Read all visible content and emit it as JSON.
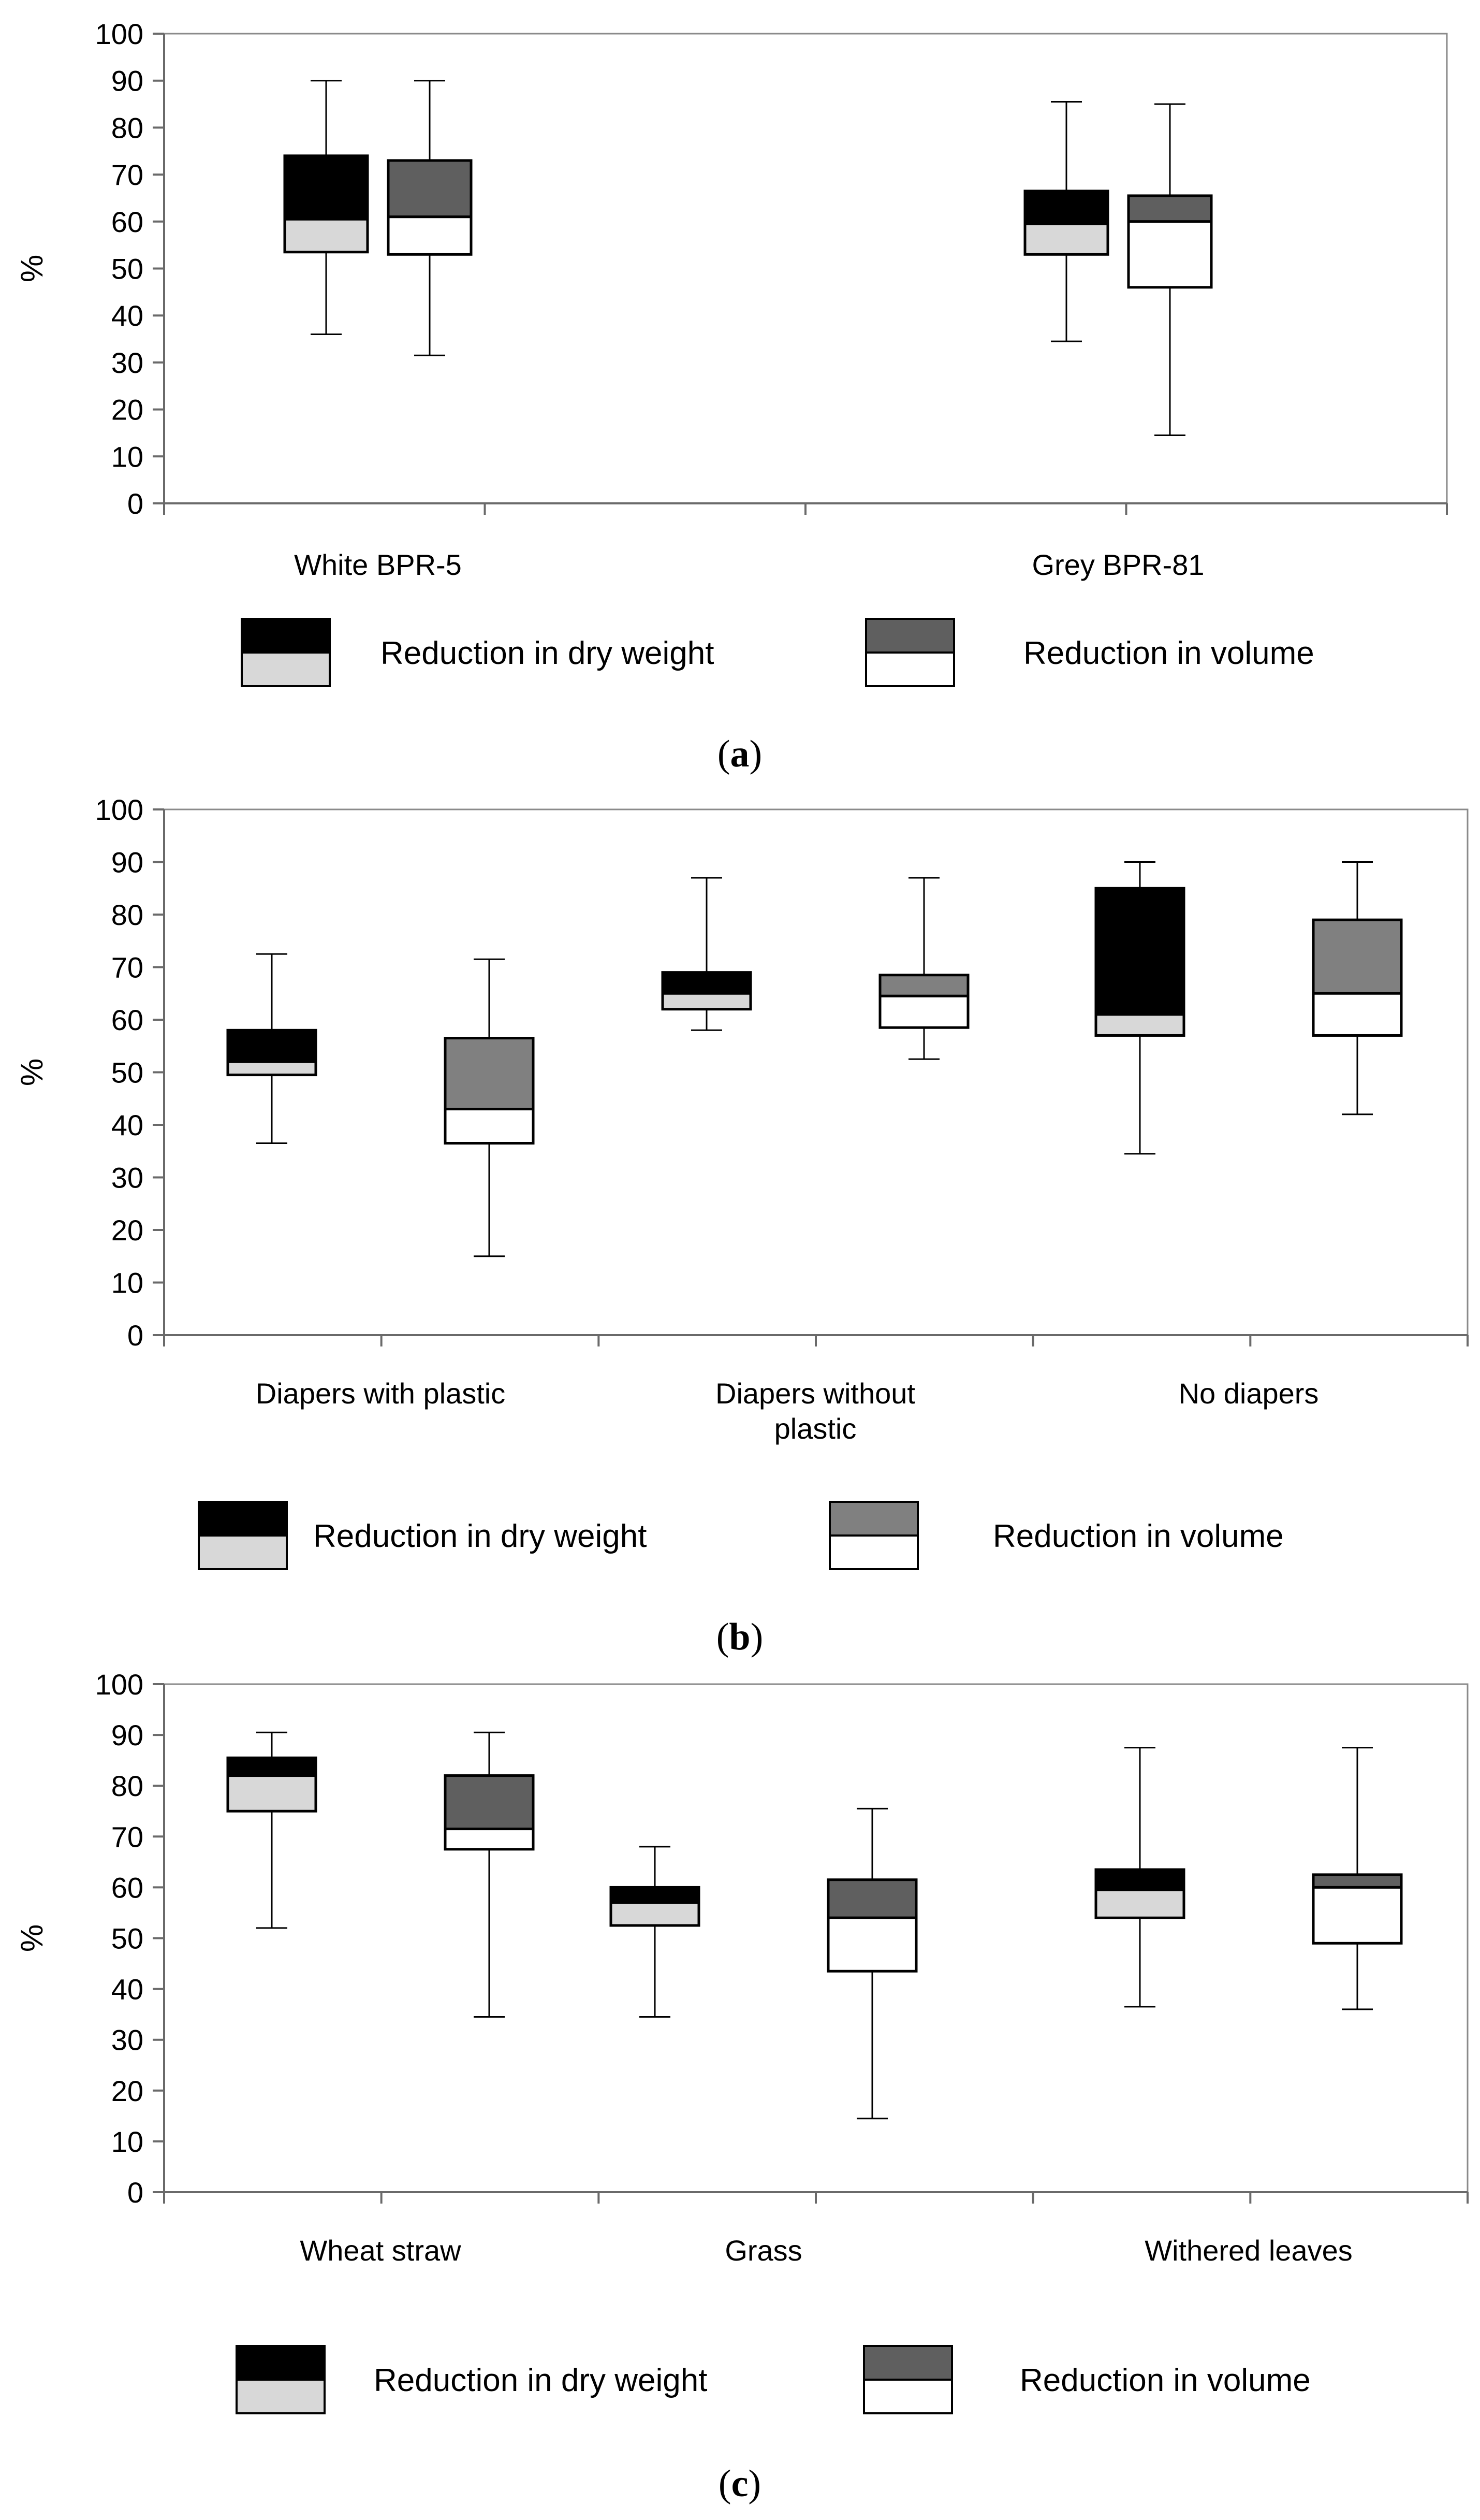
{
  "chart_data": [
    {
      "type": "box",
      "panel_label": "a",
      "ylabel": "%",
      "ylim": [
        0,
        100
      ],
      "yticks": [
        0,
        10,
        20,
        30,
        40,
        50,
        60,
        70,
        80,
        90,
        100
      ],
      "categories": [
        "White BPR-5",
        "Grey BPR-81"
      ],
      "series": [
        {
          "name": "Reduction in dry weight",
          "upper_color": "#000000",
          "lower_color": "#d8d8d8"
        },
        {
          "name": "Reduction in volume",
          "upper_color": "#5f5f5f",
          "lower_color": "#ffffff"
        }
      ],
      "boxes": [
        {
          "category": 0,
          "series": 0,
          "min": 36,
          "q1": 53.5,
          "median": 60.5,
          "q3": 74,
          "max": 90
        },
        {
          "category": 0,
          "series": 1,
          "min": 31.5,
          "q1": 53,
          "median": 61,
          "q3": 73,
          "max": 90
        },
        {
          "category": 1,
          "series": 0,
          "min": 34.5,
          "q1": 53,
          "median": 59.5,
          "q3": 66.5,
          "max": 85.5
        },
        {
          "category": 1,
          "series": 1,
          "min": 14.5,
          "q1": 46,
          "median": 60,
          "q3": 65.5,
          "max": 85
        }
      ],
      "legend": [
        "Reduction in dry weight",
        "Reduction in volume"
      ]
    },
    {
      "type": "box",
      "panel_label": "b",
      "ylabel": "%",
      "ylim": [
        0,
        100
      ],
      "yticks": [
        0,
        10,
        20,
        30,
        40,
        50,
        60,
        70,
        80,
        90,
        100
      ],
      "categories": [
        "Diapers with plastic",
        "Diapers without plastic",
        "No diapers"
      ],
      "series": [
        {
          "name": "Reduction in dry weight",
          "upper_color": "#000000",
          "lower_color": "#d8d8d8"
        },
        {
          "name": "Reduction in volume",
          "upper_color": "#808080",
          "lower_color": "#ffffff"
        }
      ],
      "boxes": [
        {
          "category": 0,
          "series": 0,
          "min": 36.5,
          "q1": 49.5,
          "median": 52,
          "q3": 58,
          "max": 72.5
        },
        {
          "category": 0,
          "series": 1,
          "min": 15,
          "q1": 36.5,
          "median": 43,
          "q3": 56.5,
          "max": 71.5
        },
        {
          "category": 1,
          "series": 0,
          "min": 58,
          "q1": 62,
          "median": 65,
          "q3": 69,
          "max": 87
        },
        {
          "category": 1,
          "series": 1,
          "min": 52.5,
          "q1": 58.5,
          "median": 64.5,
          "q3": 68.5,
          "max": 87
        },
        {
          "category": 2,
          "series": 0,
          "min": 34.5,
          "q1": 57,
          "median": 61,
          "q3": 85,
          "max": 90
        },
        {
          "category": 2,
          "series": 1,
          "min": 42,
          "q1": 57,
          "median": 65,
          "q3": 79,
          "max": 90
        }
      ],
      "legend": [
        "Reduction in dry weight",
        "Reduction in volume"
      ]
    },
    {
      "type": "box",
      "panel_label": "c",
      "ylabel": "%",
      "ylim": [
        0,
        100
      ],
      "yticks": [
        0,
        10,
        20,
        30,
        40,
        50,
        60,
        70,
        80,
        90,
        100
      ],
      "categories": [
        "Wheat straw",
        "Grass",
        "Withered leaves"
      ],
      "series": [
        {
          "name": "Reduction in dry weight",
          "upper_color": "#000000",
          "lower_color": "#d8d8d8"
        },
        {
          "name": "Reduction in volume",
          "upper_color": "#5f5f5f",
          "lower_color": "#ffffff"
        }
      ],
      "boxes": [
        {
          "category": 0,
          "series": 0,
          "min": 52,
          "q1": 75,
          "median": 82,
          "q3": 85.5,
          "max": 90.5
        },
        {
          "category": 0,
          "series": 1,
          "min": 34.5,
          "q1": 67.5,
          "median": 71.5,
          "q3": 82,
          "max": 90.5
        },
        {
          "category": 1,
          "series": 0,
          "min": 34.5,
          "q1": 52.5,
          "median": 57,
          "q3": 60,
          "max": 68
        },
        {
          "category": 1,
          "series": 1,
          "min": 14.5,
          "q1": 43.5,
          "median": 54,
          "q3": 61.5,
          "max": 75.5
        },
        {
          "category": 2,
          "series": 0,
          "min": 36.5,
          "q1": 54,
          "median": 59.5,
          "q3": 63.5,
          "max": 87.5
        },
        {
          "category": 2,
          "series": 1,
          "min": 36,
          "q1": 49,
          "median": 60,
          "q3": 62.5,
          "max": 87.5
        }
      ],
      "legend": [
        "Reduction in dry weight",
        "Reduction in volume"
      ]
    }
  ]
}
